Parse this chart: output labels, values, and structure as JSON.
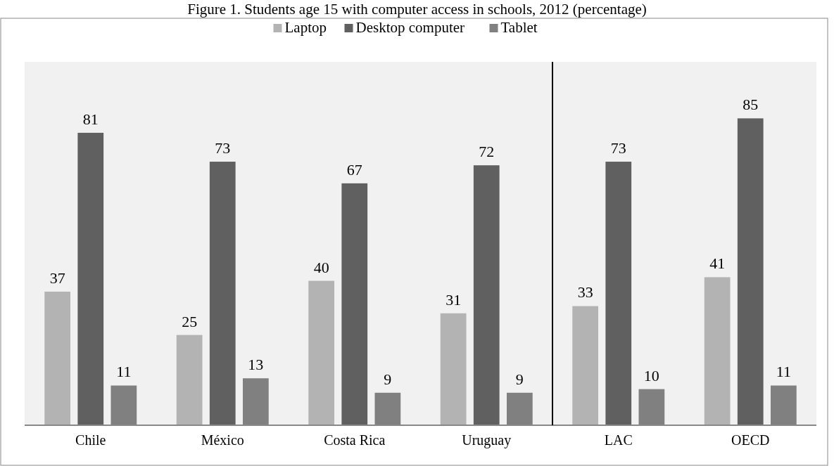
{
  "chart_data": {
    "type": "bar",
    "title": "Figure 1. Students age 15 with computer access in schools, 2012 (percentage)",
    "categories": [
      "Chile",
      "México",
      "Costa Rica",
      "Uruguay",
      "LAC",
      "OECD"
    ],
    "series": [
      {
        "name": "Laptop",
        "color": "#b3b3b3",
        "values": [
          37,
          25,
          40,
          31,
          33,
          41
        ]
      },
      {
        "name": "Desktop computer",
        "color": "#606060",
        "values": [
          81,
          73,
          67,
          72,
          73,
          85
        ]
      },
      {
        "name": "Tablet",
        "color": "#808080",
        "values": [
          11,
          13,
          9,
          9,
          10,
          11
        ]
      }
    ],
    "data_labels": true,
    "legend": "top"
  }
}
